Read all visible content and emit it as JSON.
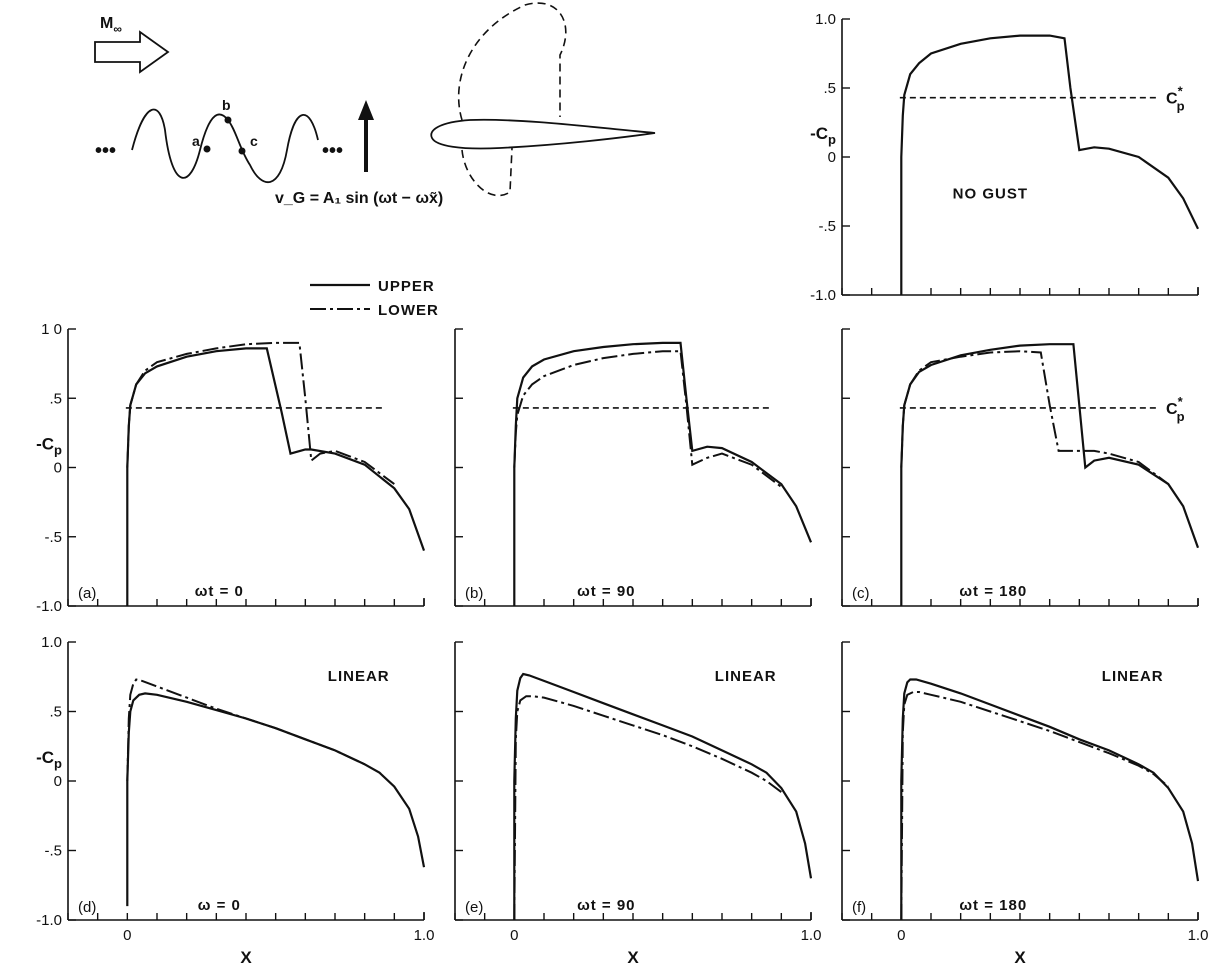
{
  "legend": {
    "upper": "UPPER",
    "lower": "LOWER"
  },
  "sketch": {
    "freestream": "M",
    "freestream_sub": "∞",
    "points": [
      "a",
      "b",
      "c"
    ],
    "dots": "•••",
    "gust_equation": "v_G = A₁ sin (ωt − ωx̃)"
  },
  "chart_data": [
    {
      "id": "no-gust",
      "type": "line",
      "tag": "",
      "note": "NO GUST",
      "ylabel": "-Cp",
      "xlabel": "",
      "xlim": [
        -0.2,
        1.0
      ],
      "ylim": [
        -1.0,
        1.0
      ],
      "ytick_labels": [
        "1.0",
        ".5",
        "0",
        "-.5",
        "-1.0"
      ],
      "ytick_values": [
        1.0,
        0.5,
        0.0,
        -0.5,
        -1.0
      ],
      "xtick_labels": [],
      "cp_star": 0.43,
      "cp_star_label": "C*p",
      "series": [
        {
          "name": "UPPER",
          "style": "upper",
          "x": [
            0.0,
            0.0,
            0.005,
            0.01,
            0.03,
            0.06,
            0.1,
            0.2,
            0.3,
            0.4,
            0.5,
            0.55,
            0.57,
            0.6,
            0.65,
            0.7,
            0.8,
            0.9,
            0.95,
            1.0
          ],
          "y": [
            -1.0,
            0.0,
            0.3,
            0.45,
            0.6,
            0.68,
            0.75,
            0.82,
            0.86,
            0.88,
            0.88,
            0.86,
            0.5,
            0.05,
            0.07,
            0.06,
            0.0,
            -0.15,
            -0.3,
            -0.52
          ]
        }
      ]
    },
    {
      "id": "a",
      "type": "line",
      "tag": "(a)",
      "note": "ωt = 0",
      "ylabel": "-Cp",
      "xlabel": "",
      "xlim": [
        -0.2,
        1.0
      ],
      "ylim": [
        -1.0,
        1.0
      ],
      "ytick_labels": [
        "1 0",
        ".5",
        "0",
        "-.5",
        "-1.0"
      ],
      "ytick_values": [
        1.0,
        0.5,
        0.0,
        -0.5,
        -1.0
      ],
      "xtick_labels": [],
      "cp_star": 0.43,
      "cp_star_label": "",
      "series": [
        {
          "name": "UPPER",
          "style": "upper",
          "x": [
            0.0,
            0.0,
            0.005,
            0.01,
            0.03,
            0.06,
            0.1,
            0.2,
            0.3,
            0.4,
            0.47,
            0.52,
            0.55,
            0.6,
            0.62,
            0.7,
            0.8,
            0.9,
            0.95,
            1.0
          ],
          "y": [
            -1.0,
            0.0,
            0.3,
            0.45,
            0.6,
            0.68,
            0.73,
            0.8,
            0.84,
            0.86,
            0.86,
            0.4,
            0.1,
            0.13,
            0.13,
            0.1,
            0.02,
            -0.15,
            -0.3,
            -0.6
          ]
        },
        {
          "name": "LOWER",
          "style": "lower",
          "x": [
            0.0,
            0.005,
            0.01,
            0.03,
            0.06,
            0.1,
            0.2,
            0.3,
            0.4,
            0.5,
            0.58,
            0.6,
            0.62,
            0.65,
            0.7,
            0.8,
            0.9
          ],
          "y": [
            0.0,
            0.3,
            0.45,
            0.6,
            0.7,
            0.76,
            0.82,
            0.86,
            0.89,
            0.9,
            0.9,
            0.5,
            0.05,
            0.1,
            0.12,
            0.04,
            -0.12
          ]
        }
      ]
    },
    {
      "id": "b",
      "type": "line",
      "tag": "(b)",
      "note": "ωt = 90",
      "ylabel": "",
      "xlabel": "",
      "xlim": [
        -0.2,
        1.0
      ],
      "ylim": [
        -1.0,
        1.0
      ],
      "ytick_labels": [],
      "ytick_values": [
        1.0,
        0.5,
        0.0,
        -0.5,
        -1.0
      ],
      "xtick_labels": [],
      "cp_star": 0.43,
      "cp_star_label": "",
      "series": [
        {
          "name": "UPPER",
          "style": "upper",
          "x": [
            0.0,
            0.0,
            0.005,
            0.01,
            0.03,
            0.06,
            0.1,
            0.2,
            0.3,
            0.4,
            0.5,
            0.56,
            0.58,
            0.6,
            0.65,
            0.7,
            0.8,
            0.9,
            0.95,
            1.0
          ],
          "y": [
            -1.0,
            0.0,
            0.3,
            0.5,
            0.65,
            0.73,
            0.78,
            0.84,
            0.87,
            0.89,
            0.9,
            0.9,
            0.5,
            0.12,
            0.15,
            0.14,
            0.04,
            -0.12,
            -0.28,
            -0.54
          ]
        },
        {
          "name": "LOWER",
          "style": "lower",
          "x": [
            0.0,
            0.005,
            0.01,
            0.03,
            0.06,
            0.1,
            0.2,
            0.3,
            0.4,
            0.5,
            0.56,
            0.58,
            0.6,
            0.65,
            0.7,
            0.8,
            0.9
          ],
          "y": [
            0.0,
            0.25,
            0.38,
            0.52,
            0.6,
            0.66,
            0.74,
            0.79,
            0.82,
            0.84,
            0.84,
            0.45,
            0.02,
            0.07,
            0.1,
            0.02,
            -0.14
          ]
        }
      ]
    },
    {
      "id": "c",
      "type": "line",
      "tag": "(c)",
      "note": "ωt = 180",
      "ylabel": "",
      "xlabel": "",
      "xlim": [
        -0.2,
        1.0
      ],
      "ylim": [
        -1.0,
        1.0
      ],
      "ytick_labels": [],
      "ytick_values": [
        1.0,
        0.5,
        0.0,
        -0.5,
        -1.0
      ],
      "xtick_labels": [],
      "cp_star": 0.43,
      "cp_star_label": "C*p",
      "series": [
        {
          "name": "UPPER",
          "style": "upper",
          "x": [
            0.0,
            0.0,
            0.005,
            0.01,
            0.03,
            0.06,
            0.1,
            0.2,
            0.3,
            0.4,
            0.5,
            0.58,
            0.6,
            0.62,
            0.65,
            0.7,
            0.8,
            0.9,
            0.95,
            1.0
          ],
          "y": [
            -1.0,
            0.0,
            0.3,
            0.45,
            0.6,
            0.69,
            0.74,
            0.81,
            0.85,
            0.88,
            0.89,
            0.89,
            0.45,
            0.0,
            0.05,
            0.07,
            0.02,
            -0.12,
            -0.28,
            -0.58
          ]
        },
        {
          "name": "LOWER",
          "style": "lower",
          "x": [
            0.0,
            0.005,
            0.01,
            0.03,
            0.06,
            0.1,
            0.2,
            0.3,
            0.4,
            0.47,
            0.5,
            0.53,
            0.6,
            0.65,
            0.7,
            0.8,
            0.9
          ],
          "y": [
            0.0,
            0.3,
            0.45,
            0.6,
            0.7,
            0.76,
            0.8,
            0.83,
            0.84,
            0.83,
            0.45,
            0.12,
            0.12,
            0.12,
            0.1,
            0.04,
            -0.12
          ]
        }
      ]
    },
    {
      "id": "d",
      "type": "line",
      "tag": "(d)",
      "note": "ω = 0",
      "ylabel": "-Cp",
      "xlabel": "X",
      "xlim": [
        -0.2,
        1.0
      ],
      "ylim": [
        -1.0,
        1.0
      ],
      "ytick_labels": [
        "1.0",
        ".5",
        "0",
        "-.5",
        "-1.0"
      ],
      "ytick_values": [
        1.0,
        0.5,
        0.0,
        -0.5,
        -1.0
      ],
      "xtick_labels": [
        "0",
        "1.0"
      ],
      "xtick_values": [
        0.0,
        1.0
      ],
      "label": "LINEAR",
      "cp_star": null,
      "cp_star_label": "",
      "series": [
        {
          "name": "UPPER",
          "style": "upper",
          "x": [
            0.0,
            0.0,
            0.005,
            0.01,
            0.02,
            0.04,
            0.06,
            0.1,
            0.2,
            0.3,
            0.4,
            0.5,
            0.6,
            0.7,
            0.8,
            0.85,
            0.9,
            0.95,
            0.98,
            1.0
          ],
          "y": [
            -0.9,
            0.0,
            0.35,
            0.5,
            0.58,
            0.62,
            0.63,
            0.62,
            0.57,
            0.51,
            0.45,
            0.38,
            0.3,
            0.22,
            0.12,
            0.06,
            -0.04,
            -0.2,
            -0.4,
            -0.62
          ]
        },
        {
          "name": "LOWER",
          "style": "lower",
          "x": [
            0.0,
            0.005,
            0.01,
            0.02,
            0.03,
            0.05,
            0.1,
            0.2,
            0.3,
            0.4,
            0.5,
            0.6,
            0.7,
            0.8
          ],
          "y": [
            0.0,
            0.45,
            0.62,
            0.7,
            0.73,
            0.72,
            0.68,
            0.6,
            0.52,
            0.45,
            0.38,
            0.3,
            0.22,
            0.12
          ]
        }
      ]
    },
    {
      "id": "e",
      "type": "line",
      "tag": "(e)",
      "note": "ωt = 90",
      "ylabel": "",
      "xlabel": "X",
      "xlim": [
        -0.2,
        1.0
      ],
      "ylim": [
        -1.0,
        1.0
      ],
      "ytick_labels": [],
      "ytick_values": [
        1.0,
        0.5,
        0.0,
        -0.5,
        -1.0
      ],
      "xtick_labels": [
        "0",
        "1.0"
      ],
      "xtick_values": [
        0.0,
        1.0
      ],
      "label": "LINEAR",
      "cp_star": null,
      "cp_star_label": "",
      "series": [
        {
          "name": "UPPER",
          "style": "upper",
          "x": [
            0.0,
            0.0,
            0.005,
            0.01,
            0.02,
            0.03,
            0.05,
            0.1,
            0.2,
            0.3,
            0.4,
            0.5,
            0.6,
            0.7,
            0.8,
            0.85,
            0.9,
            0.95,
            0.98,
            1.0
          ],
          "y": [
            -1.0,
            0.0,
            0.45,
            0.65,
            0.74,
            0.77,
            0.76,
            0.72,
            0.64,
            0.56,
            0.48,
            0.4,
            0.32,
            0.22,
            0.12,
            0.06,
            -0.05,
            -0.22,
            -0.45,
            -0.7
          ]
        },
        {
          "name": "LOWER",
          "style": "lower",
          "x": [
            0.0,
            0.005,
            0.01,
            0.02,
            0.04,
            0.06,
            0.1,
            0.2,
            0.3,
            0.4,
            0.5,
            0.6,
            0.7,
            0.8,
            0.85,
            0.9
          ],
          "y": [
            -1.0,
            0.3,
            0.5,
            0.58,
            0.61,
            0.61,
            0.6,
            0.54,
            0.47,
            0.4,
            0.33,
            0.25,
            0.16,
            0.06,
            0.0,
            -0.08
          ]
        }
      ]
    },
    {
      "id": "f",
      "type": "line",
      "tag": "(f)",
      "note": "ωt = 180",
      "ylabel": "",
      "xlabel": "X",
      "xlim": [
        -0.2,
        1.0
      ],
      "ylim": [
        -1.0,
        1.0
      ],
      "ytick_labels": [],
      "ytick_values": [
        1.0,
        0.5,
        0.0,
        -0.5,
        -1.0
      ],
      "xtick_labels": [
        "0",
        "1.0"
      ],
      "xtick_values": [
        0.0,
        1.0
      ],
      "label": "LINEAR",
      "cp_star": null,
      "cp_star_label": "",
      "series": [
        {
          "name": "UPPER",
          "style": "upper",
          "x": [
            0.0,
            0.0,
            0.005,
            0.01,
            0.02,
            0.03,
            0.05,
            0.1,
            0.2,
            0.3,
            0.4,
            0.5,
            0.6,
            0.7,
            0.8,
            0.85,
            0.9,
            0.95,
            0.98,
            1.0
          ],
          "y": [
            -1.0,
            0.0,
            0.45,
            0.63,
            0.71,
            0.73,
            0.73,
            0.7,
            0.63,
            0.55,
            0.47,
            0.39,
            0.3,
            0.22,
            0.12,
            0.06,
            -0.05,
            -0.22,
            -0.45,
            -0.72
          ]
        },
        {
          "name": "LOWER",
          "style": "lower",
          "x": [
            0.0,
            0.005,
            0.01,
            0.02,
            0.04,
            0.06,
            0.1,
            0.2,
            0.3,
            0.4,
            0.5,
            0.6,
            0.7,
            0.8,
            0.85,
            0.9
          ],
          "y": [
            -1.0,
            0.35,
            0.55,
            0.62,
            0.64,
            0.64,
            0.62,
            0.57,
            0.5,
            0.43,
            0.36,
            0.28,
            0.2,
            0.11,
            0.05,
            -0.04
          ]
        }
      ]
    }
  ]
}
